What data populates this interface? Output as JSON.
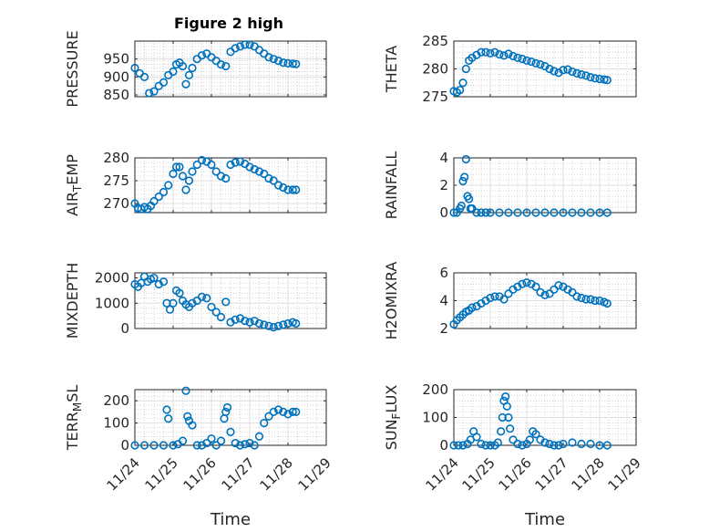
{
  "figure": {
    "title": "Figure 2 high",
    "marker_color": "#0072bd",
    "axis_color": "#262626",
    "grid_color": "#dfdfdf"
  },
  "chart_data": [
    {
      "type": "scatter",
      "id": "pressure",
      "title": "Figure 2 high",
      "ylabel_parts": [
        {
          "t": "PRESSURE"
        }
      ],
      "ylim": [
        845,
        1000
      ],
      "yticks": [
        850,
        900,
        950
      ],
      "show_xticklabels": false,
      "x_range": [
        "11/24",
        "11/29"
      ],
      "x": [
        "11/24 00:00",
        "11/24 03:00",
        "11/24 06:00",
        "11/24 09:00",
        "11/24 12:00",
        "11/24 15:00",
        "11/24 18:00",
        "11/24 21:00",
        "11/25 00:00",
        "11/25 02:00",
        "11/25 04:00",
        "11/25 06:00",
        "11/25 08:00",
        "11/25 10:00",
        "11/25 12:00",
        "11/25 15:00",
        "11/25 18:00",
        "11/25 21:00",
        "11/26 00:00",
        "11/26 03:00",
        "11/26 06:00",
        "11/26 09:00",
        "11/26 12:00",
        "11/26 15:00",
        "11/26 18:00",
        "11/26 21:00",
        "11/27 00:00",
        "11/27 03:00",
        "11/27 06:00",
        "11/27 09:00",
        "11/27 12:00",
        "11/27 15:00",
        "11/27 18:00",
        "11/27 21:00",
        "11/28 00:00",
        "11/28 03:00",
        "11/28 05:00"
      ],
      "y": [
        925,
        910,
        900,
        855,
        860,
        875,
        885,
        905,
        915,
        935,
        940,
        930,
        880,
        905,
        925,
        950,
        960,
        965,
        955,
        945,
        935,
        930,
        970,
        980,
        985,
        990,
        990,
        985,
        975,
        965,
        955,
        950,
        945,
        940,
        938,
        937,
        936
      ]
    },
    {
      "type": "scatter",
      "id": "theta",
      "ylabel_parts": [
        {
          "t": "THETA"
        }
      ],
      "ylim": [
        275,
        285
      ],
      "yticks": [
        275,
        280,
        285
      ],
      "show_xticklabels": false,
      "x_range": [
        "11/24",
        "11/29"
      ],
      "x": [
        "11/24 00:00",
        "11/24 02:00",
        "11/24 04:00",
        "11/24 06:00",
        "11/24 08:00",
        "11/24 10:00",
        "11/24 12:00",
        "11/24 15:00",
        "11/24 18:00",
        "11/24 21:00",
        "11/25 00:00",
        "11/25 03:00",
        "11/25 06:00",
        "11/25 09:00",
        "11/25 12:00",
        "11/25 15:00",
        "11/25 18:00",
        "11/25 21:00",
        "11/26 00:00",
        "11/26 03:00",
        "11/26 06:00",
        "11/26 09:00",
        "11/26 12:00",
        "11/26 15:00",
        "11/26 18:00",
        "11/26 21:00",
        "11/27 00:00",
        "11/27 03:00",
        "11/27 06:00",
        "11/27 09:00",
        "11/27 12:00",
        "11/27 15:00",
        "11/27 18:00",
        "11/27 21:00",
        "11/28 00:00",
        "11/28 03:00",
        "11/28 05:00"
      ],
      "y": [
        276,
        275.8,
        276.2,
        277.5,
        280,
        281.5,
        282,
        282.5,
        283,
        283,
        282.8,
        283,
        282.6,
        282.4,
        282.7,
        282.3,
        282,
        281.8,
        281.5,
        281.3,
        281,
        280.8,
        280.5,
        280,
        279.6,
        279.3,
        279.8,
        279.9,
        279.5,
        279.2,
        279,
        278.8,
        278.5,
        278.3,
        278.2,
        278.1,
        278
      ]
    },
    {
      "type": "scatter",
      "id": "air_temp",
      "ylabel_parts": [
        {
          "t": "AIR"
        },
        {
          "t": "T",
          "sub": true
        },
        {
          "t": "EMP"
        }
      ],
      "ylim": [
        268,
        280
      ],
      "yticks": [
        270,
        275,
        280
      ],
      "show_xticklabels": false,
      "x_range": [
        "11/24",
        "11/29"
      ],
      "x": [
        "11/24 00:00",
        "11/24 02:00",
        "11/24 04:00",
        "11/24 06:00",
        "11/24 08:00",
        "11/24 10:00",
        "11/24 12:00",
        "11/24 15:00",
        "11/24 18:00",
        "11/24 21:00",
        "11/25 00:00",
        "11/25 02:00",
        "11/25 04:00",
        "11/25 06:00",
        "11/25 08:00",
        "11/25 10:00",
        "11/25 12:00",
        "11/25 15:00",
        "11/25 18:00",
        "11/25 21:00",
        "11/26 00:00",
        "11/26 03:00",
        "11/26 06:00",
        "11/26 09:00",
        "11/26 12:00",
        "11/26 15:00",
        "11/26 18:00",
        "11/26 21:00",
        "11/27 00:00",
        "11/27 03:00",
        "11/27 06:00",
        "11/27 09:00",
        "11/27 12:00",
        "11/27 15:00",
        "11/27 18:00",
        "11/27 21:00",
        "11/28 00:00",
        "11/28 03:00",
        "11/28 05:00"
      ],
      "y": [
        270,
        269,
        268.8,
        269.2,
        268.8,
        269.5,
        270.5,
        271.5,
        272.5,
        274,
        276.5,
        278,
        278,
        276,
        273,
        275,
        277,
        278.5,
        279.5,
        279.2,
        278.5,
        277,
        276,
        275.5,
        278.5,
        279,
        279.2,
        278.7,
        278,
        277.5,
        277,
        276.5,
        275.5,
        275,
        274,
        273.5,
        273,
        273,
        273
      ]
    },
    {
      "type": "scatter",
      "id": "rainfall",
      "ylabel_parts": [
        {
          "t": "RAINFALL"
        }
      ],
      "ylim": [
        0,
        4
      ],
      "yticks": [
        0,
        2,
        4
      ],
      "show_xticklabels": false,
      "x_range": [
        "11/24",
        "11/29"
      ],
      "x": [
        "11/24 00:00",
        "11/24 02:00",
        "11/24 04:00",
        "11/24 05:00",
        "11/24 06:00",
        "11/24 07:00",
        "11/24 08:00",
        "11/24 09:00",
        "11/24 10:00",
        "11/24 11:00",
        "11/24 12:00",
        "11/24 15:00",
        "11/24 18:00",
        "11/24 21:00",
        "11/25 00:00",
        "11/25 06:00",
        "11/25 12:00",
        "11/25 18:00",
        "11/26 00:00",
        "11/26 06:00",
        "11/26 12:00",
        "11/26 18:00",
        "11/27 00:00",
        "11/27 06:00",
        "11/27 12:00",
        "11/27 18:00",
        "11/28 00:00",
        "11/28 05:00"
      ],
      "y": [
        0,
        0,
        0.3,
        0.5,
        2.3,
        2.6,
        3.9,
        1.2,
        1,
        0.3,
        0.3,
        0,
        0,
        0,
        0,
        0,
        0,
        0,
        0,
        0,
        0,
        0,
        0,
        0,
        0,
        0,
        0,
        0
      ]
    },
    {
      "type": "scatter",
      "id": "mixdepth",
      "ylabel_parts": [
        {
          "t": "MIXDEPTH"
        }
      ],
      "ylim": [
        0,
        2200
      ],
      "yticks": [
        0,
        1000,
        2000
      ],
      "show_xticklabels": false,
      "x_range": [
        "11/24",
        "11/29"
      ],
      "x": [
        "11/24 00:00",
        "11/24 02:00",
        "11/24 04:00",
        "11/24 06:00",
        "11/24 08:00",
        "11/24 10:00",
        "11/24 12:00",
        "11/24 15:00",
        "11/24 18:00",
        "11/24 20:00",
        "11/24 22:00",
        "11/25 00:00",
        "11/25 02:00",
        "11/25 04:00",
        "11/25 06:00",
        "11/25 08:00",
        "11/25 10:00",
        "11/25 12:00",
        "11/25 15:00",
        "11/25 18:00",
        "11/25 21:00",
        "11/26 00:00",
        "11/26 03:00",
        "11/26 06:00",
        "11/26 09:00",
        "11/26 12:00",
        "11/26 15:00",
        "11/26 18:00",
        "11/26 21:00",
        "11/27 00:00",
        "11/27 03:00",
        "11/27 06:00",
        "11/27 09:00",
        "11/27 12:00",
        "11/27 15:00",
        "11/27 18:00",
        "11/27 21:00",
        "11/28 00:00",
        "11/28 03:00",
        "11/28 05:00"
      ],
      "y": [
        1750,
        1650,
        1800,
        2050,
        1850,
        1950,
        2000,
        1750,
        1850,
        1000,
        750,
        1000,
        1500,
        1400,
        1100,
        950,
        850,
        1000,
        1100,
        1250,
        1200,
        850,
        650,
        450,
        1050,
        250,
        350,
        400,
        300,
        250,
        300,
        200,
        150,
        100,
        50,
        100,
        150,
        200,
        250,
        200
      ]
    },
    {
      "type": "scatter",
      "id": "h2omixra",
      "ylabel_parts": [
        {
          "t": "H2OMIXRA"
        }
      ],
      "ylim": [
        2,
        6
      ],
      "yticks": [
        2,
        4,
        6
      ],
      "show_xticklabels": false,
      "x_range": [
        "11/24",
        "11/29"
      ],
      "x": [
        "11/24 00:00",
        "11/24 02:00",
        "11/24 04:00",
        "11/24 06:00",
        "11/24 08:00",
        "11/24 10:00",
        "11/24 12:00",
        "11/24 15:00",
        "11/24 18:00",
        "11/24 21:00",
        "11/25 00:00",
        "11/25 03:00",
        "11/25 06:00",
        "11/25 09:00",
        "11/25 12:00",
        "11/25 15:00",
        "11/25 18:00",
        "11/25 21:00",
        "11/26 00:00",
        "11/26 03:00",
        "11/26 06:00",
        "11/26 09:00",
        "11/26 12:00",
        "11/26 15:00",
        "11/26 18:00",
        "11/26 21:00",
        "11/27 00:00",
        "11/27 03:00",
        "11/27 06:00",
        "11/27 09:00",
        "11/27 12:00",
        "11/27 15:00",
        "11/27 18:00",
        "11/27 21:00",
        "11/28 00:00",
        "11/28 03:00",
        "11/28 05:00"
      ],
      "y": [
        2.3,
        2.6,
        2.8,
        3,
        3.2,
        3.3,
        3.5,
        3.6,
        3.8,
        4,
        4.2,
        4.3,
        4.3,
        4.1,
        4.5,
        4.8,
        5,
        5.2,
        5.3,
        5.2,
        5,
        4.6,
        4.4,
        4.5,
        4.8,
        5.1,
        5,
        4.8,
        4.6,
        4.3,
        4.2,
        4.1,
        4.1,
        4,
        4,
        3.9,
        3.8
      ]
    },
    {
      "type": "scatter",
      "id": "terr_msl",
      "ylabel_parts": [
        {
          "t": "TERR"
        },
        {
          "t": "M",
          "sub": true
        },
        {
          "t": "SL"
        }
      ],
      "ylim": [
        0,
        250
      ],
      "yticks": [
        0,
        100,
        200
      ],
      "show_xticklabels": true,
      "xticks": [
        "11/24",
        "11/25",
        "11/26",
        "11/27",
        "11/28",
        "11/29"
      ],
      "xlabel": "Time",
      "x_range": [
        "11/24",
        "11/29"
      ],
      "x": [
        "11/24 00:00",
        "11/24 06:00",
        "11/24 12:00",
        "11/24 18:00",
        "11/24 20:00",
        "11/24 21:00",
        "11/25 00:00",
        "11/25 03:00",
        "11/25 06:00",
        "11/25 08:00",
        "11/25 09:00",
        "11/25 10:00",
        "11/25 12:00",
        "11/25 15:00",
        "11/25 18:00",
        "11/25 21:00",
        "11/26 00:00",
        "11/26 03:00",
        "11/26 06:00",
        "11/26 08:00",
        "11/26 09:00",
        "11/26 10:00",
        "11/26 12:00",
        "11/26 15:00",
        "11/26 18:00",
        "11/26 21:00",
        "11/27 00:00",
        "11/27 03:00",
        "11/27 06:00",
        "11/27 09:00",
        "11/27 12:00",
        "11/27 15:00",
        "11/27 18:00",
        "11/27 21:00",
        "11/28 00:00",
        "11/28 03:00",
        "11/28 05:00"
      ],
      "y": [
        0,
        0,
        0,
        0,
        160,
        120,
        0,
        5,
        20,
        245,
        130,
        110,
        90,
        0,
        0,
        10,
        30,
        0,
        20,
        120,
        150,
        170,
        60,
        10,
        0,
        5,
        10,
        0,
        40,
        100,
        130,
        150,
        160,
        150,
        140,
        150,
        150
      ]
    },
    {
      "type": "scatter",
      "id": "sun_flux",
      "ylabel_parts": [
        {
          "t": "SUN"
        },
        {
          "t": "F",
          "sub": true
        },
        {
          "t": "LUX"
        }
      ],
      "ylim": [
        0,
        200
      ],
      "yticks": [
        0,
        100,
        200
      ],
      "show_xticklabels": true,
      "xticks": [
        "11/24",
        "11/25",
        "11/26",
        "11/27",
        "11/28",
        "11/29"
      ],
      "xlabel": "Time",
      "x_range": [
        "11/24",
        "11/29"
      ],
      "x": [
        "11/24 00:00",
        "11/24 03:00",
        "11/24 06:00",
        "11/24 09:00",
        "11/24 11:00",
        "11/24 13:00",
        "11/24 15:00",
        "11/24 18:00",
        "11/24 21:00",
        "11/25 00:00",
        "11/25 03:00",
        "11/25 05:00",
        "11/25 07:00",
        "11/25 08:00",
        "11/25 09:00",
        "11/25 10:00",
        "11/25 11:00",
        "11/25 12:00",
        "11/25 13:00",
        "11/25 15:00",
        "11/25 18:00",
        "11/25 21:00",
        "11/26 00:00",
        "11/26 02:00",
        "11/26 04:00",
        "11/26 06:00",
        "11/26 09:00",
        "11/26 12:00",
        "11/26 15:00",
        "11/26 18:00",
        "11/26 21:00",
        "11/27 00:00",
        "11/27 06:00",
        "11/27 12:00",
        "11/27 18:00",
        "11/28 00:00",
        "11/28 05:00"
      ],
      "y": [
        0,
        0,
        0,
        5,
        20,
        50,
        30,
        5,
        0,
        0,
        0,
        10,
        50,
        100,
        160,
        175,
        140,
        100,
        60,
        20,
        5,
        0,
        5,
        20,
        50,
        40,
        20,
        10,
        5,
        0,
        0,
        5,
        10,
        5,
        5,
        0,
        0
      ]
    }
  ]
}
